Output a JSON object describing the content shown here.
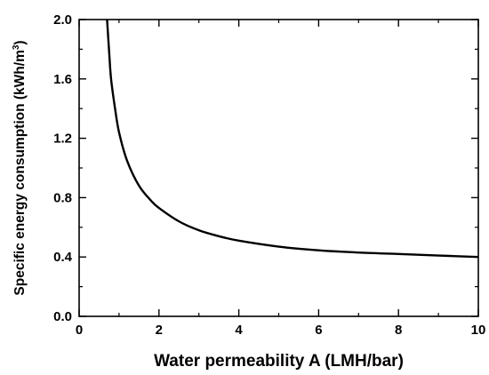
{
  "chart_data": {
    "type": "line",
    "title": "",
    "xlabel": "Water permeability A (LMH/bar)",
    "ylabel_main": "Specific energy consumption (kWh/m",
    "ylabel_sup": "3",
    "ylabel_end": ")",
    "xlim": [
      0,
      10
    ],
    "ylim": [
      0.0,
      2.0
    ],
    "x_ticks": [
      0,
      2,
      4,
      6,
      8,
      10
    ],
    "x_tick_labels": [
      "0",
      "2",
      "4",
      "6",
      "8",
      "10"
    ],
    "y_ticks": [
      0.0,
      0.4,
      0.8,
      1.2,
      1.6,
      2.0
    ],
    "y_tick_labels": [
      "0.0",
      "0.4",
      "0.8",
      "1.2",
      "1.6",
      "2.0"
    ],
    "grid": false,
    "legend": "none",
    "line_color": "#000000",
    "series": [
      {
        "x": [
          0.7,
          0.75,
          0.8,
          0.9,
          1.0,
          1.2,
          1.5,
          1.8,
          2.0,
          2.5,
          3.0,
          3.5,
          4.0,
          5.0,
          6.0,
          7.0,
          8.0,
          9.0,
          10.0
        ],
        "y": [
          2.0,
          1.79,
          1.6,
          1.4,
          1.24,
          1.05,
          0.88,
          0.78,
          0.73,
          0.64,
          0.58,
          0.54,
          0.51,
          0.47,
          0.445,
          0.43,
          0.42,
          0.41,
          0.4
        ]
      }
    ]
  }
}
